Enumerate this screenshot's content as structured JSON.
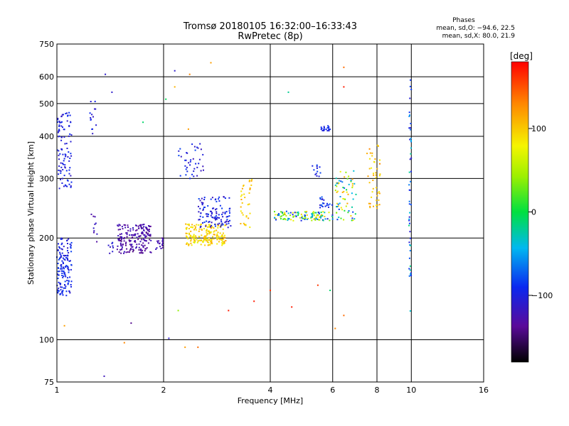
{
  "chart_data": {
    "type": "scatter",
    "title": "Tromsø 20180105 16:32:00–16:33:43",
    "subtitle": "RwPretec (8p)",
    "xlabel": "Frequency [MHz]",
    "ylabel": "Stationary phase Virtual Height [km]",
    "x_scale": "log",
    "y_scale": "log",
    "xlim": [
      1,
      16
    ],
    "ylim": [
      75,
      750
    ],
    "x_ticks": [
      1,
      2,
      4,
      6,
      8,
      10,
      16
    ],
    "x_tick_labels": [
      "1",
      "2",
      "4",
      "6",
      "8",
      "10",
      "16"
    ],
    "y_ticks": [
      75,
      100,
      200,
      300,
      400,
      500,
      600,
      750
    ],
    "y_tick_labels": [
      "75",
      "100",
      "200",
      "300",
      "400",
      "500",
      "600",
      "750"
    ],
    "grid": true,
    "phases_header": "Phases",
    "phases_stats": [
      "mean, sd,O: −94.6, 22.5",
      "mean, sd,X:  80.0, 21.9"
    ],
    "colorbar": {
      "label": "[deg]",
      "range": [
        -180,
        180
      ],
      "ticks": [
        100,
        0,
        -100
      ],
      "tick_labels": [
        "100",
        "0",
        "−100"
      ],
      "colormap": "rainbow"
    },
    "clusters": [
      {
        "f": [
          1.0,
          1.1
        ],
        "h": [
          135,
          200
        ],
        "phase": [
          -115,
          -80
        ],
        "n": 140
      },
      {
        "f": [
          1.0,
          1.1
        ],
        "h": [
          280,
          470
        ],
        "phase": [
          -115,
          -85
        ],
        "n": 100
      },
      {
        "f": [
          1.24,
          1.3
        ],
        "h": [
          340,
          510
        ],
        "phase": [
          -115,
          -90
        ],
        "n": 14
      },
      {
        "f": [
          1.25,
          1.3
        ],
        "h": [
          190,
          245
        ],
        "phase": [
          -135,
          -110
        ],
        "n": 10
      },
      {
        "f": [
          1.38,
          1.46
        ],
        "h": [
          180,
          195
        ],
        "phase": [
          -120,
          -100
        ],
        "n": 8
      },
      {
        "f": [
          1.48,
          1.85
        ],
        "h": [
          180,
          220
        ],
        "phase": [
          -145,
          -115
        ],
        "n": 190
      },
      {
        "f": [
          1.9,
          2.0
        ],
        "h": [
          185,
          200
        ],
        "phase": [
          -140,
          -115
        ],
        "n": 18
      },
      {
        "f": [
          2.3,
          3.0
        ],
        "h": [
          190,
          220
        ],
        "phase": [
          70,
          120
        ],
        "n": 190
      },
      {
        "f": [
          2.5,
          3.1
        ],
        "h": [
          215,
          265
        ],
        "phase": [
          -120,
          -80
        ],
        "n": 110
      },
      {
        "f": [
          2.2,
          2.6
        ],
        "h": [
          300,
          380
        ],
        "phase": [
          -120,
          -80
        ],
        "n": 40
      },
      {
        "f": [
          3.3,
          3.55
        ],
        "h": [
          215,
          300
        ],
        "phase": [
          80,
          120
        ],
        "n": 35
      },
      {
        "f": [
          4.1,
          6.0
        ],
        "h": [
          225,
          240
        ],
        "phase": [
          -110,
          110
        ],
        "n": 120
      },
      {
        "f": [
          5.5,
          6.0
        ],
        "h": [
          245,
          265
        ],
        "phase": [
          -110,
          -70
        ],
        "n": 20
      },
      {
        "f": [
          6.1,
          7.0
        ],
        "h": [
          225,
          320
        ],
        "phase": [
          -100,
          120
        ],
        "n": 70
      },
      {
        "f": [
          7.5,
          8.2
        ],
        "h": [
          245,
          380
        ],
        "phase": [
          80,
          130
        ],
        "n": 45
      },
      {
        "f": [
          5.5,
          5.9
        ],
        "h": [
          415,
          430
        ],
        "phase": [
          -105,
          -85
        ],
        "n": 20
      },
      {
        "f": [
          5.1,
          5.6
        ],
        "h": [
          300,
          330
        ],
        "phase": [
          -110,
          -80
        ],
        "n": 12
      },
      {
        "f": [
          9.85,
          10.0
        ],
        "h": [
          120,
          590
        ],
        "phase": [
          -110,
          -10
        ],
        "n": 50
      }
    ],
    "scatter_points": [
      {
        "f": 1.37,
        "h": 610,
        "phase": -110
      },
      {
        "f": 1.43,
        "h": 540,
        "phase": -110
      },
      {
        "f": 2.03,
        "h": 515,
        "phase": -5
      },
      {
        "f": 2.15,
        "h": 625,
        "phase": -110
      },
      {
        "f": 2.15,
        "h": 560,
        "phase": 110
      },
      {
        "f": 2.37,
        "h": 610,
        "phase": 130
      },
      {
        "f": 2.72,
        "h": 660,
        "phase": 120
      },
      {
        "f": 2.35,
        "h": 420,
        "phase": 120
      },
      {
        "f": 1.75,
        "h": 440,
        "phase": -10
      },
      {
        "f": 4.5,
        "h": 540,
        "phase": -20
      },
      {
        "f": 6.45,
        "h": 640,
        "phase": 140
      },
      {
        "f": 6.45,
        "h": 560,
        "phase": 170
      },
      {
        "f": 2.3,
        "h": 95,
        "phase": 120
      },
      {
        "f": 2.5,
        "h": 95,
        "phase": 140
      },
      {
        "f": 1.55,
        "h": 98,
        "phase": 130
      },
      {
        "f": 1.05,
        "h": 110,
        "phase": 120
      },
      {
        "f": 1.62,
        "h": 112,
        "phase": -140
      },
      {
        "f": 2.07,
        "h": 101,
        "phase": -110
      },
      {
        "f": 1.36,
        "h": 78,
        "phase": -120
      },
      {
        "f": 4.0,
        "h": 140,
        "phase": 160
      },
      {
        "f": 3.6,
        "h": 130,
        "phase": 170
      },
      {
        "f": 3.05,
        "h": 122,
        "phase": 170
      },
      {
        "f": 4.6,
        "h": 125,
        "phase": 170
      },
      {
        "f": 6.1,
        "h": 108,
        "phase": 130
      },
      {
        "f": 6.45,
        "h": 118,
        "phase": 140
      },
      {
        "f": 2.2,
        "h": 122,
        "phase": 40
      },
      {
        "f": 5.45,
        "h": 145,
        "phase": 160
      },
      {
        "f": 5.9,
        "h": 140,
        "phase": -10
      }
    ]
  }
}
